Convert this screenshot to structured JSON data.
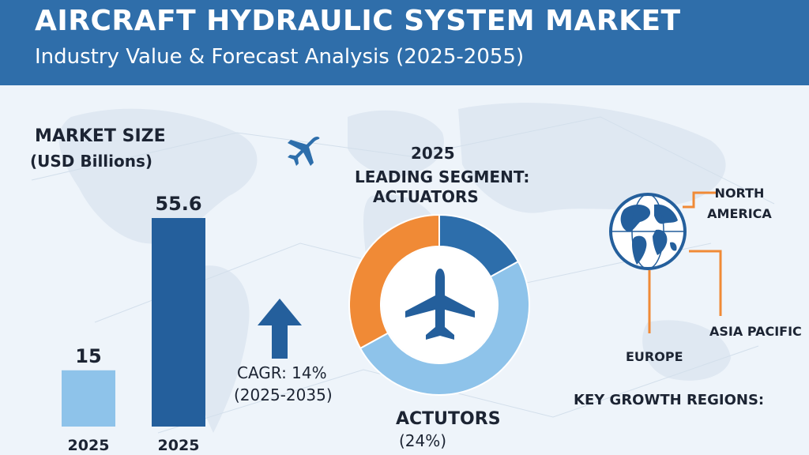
{
  "header": {
    "title": "AIRCRAFT HYDRAULIC SYSTEM MARKET",
    "subtitle": "Industry Value & Forecast Analysis (2025-2055)"
  },
  "market_size": {
    "title": "MARKET SIZE",
    "unit": "(USD Billions)"
  },
  "cagr": {
    "label": "CAGR: 14%",
    "period": "(2025-2035)"
  },
  "segment": {
    "year": "2025",
    "title": "LEADING SEGMENT:",
    "name": "ACTUATORS",
    "label": "ACTUTORS",
    "share": "(24%)"
  },
  "regions": {
    "title": "KEY GROWTH REGIONS:",
    "items": [
      "NORTH AMERICA",
      "ASIA PACIFIC",
      "EUROPE"
    ]
  },
  "icons": [
    "airplane-icon",
    "up-arrow-icon",
    "globe-icon",
    "world-map-icon"
  ],
  "colors": {
    "header": "#2f6eaa",
    "bar_light": "#8ec3ea",
    "bar_dark": "#245f9c",
    "donut_orange": "#f08a36",
    "donut_blue": "#2d6eab",
    "donut_light": "#8ec3ea",
    "connector": "#f08a36"
  },
  "chart_data": [
    {
      "type": "bar",
      "categories": [
        "2025",
        "2025"
      ],
      "values": [
        15,
        55.6
      ],
      "data_labels": [
        "15",
        "55.6"
      ],
      "ylim": [
        0,
        60
      ]
    },
    {
      "type": "pie",
      "categories": [
        "",
        "",
        ""
      ],
      "values": [
        33,
        17,
        50
      ]
    }
  ]
}
